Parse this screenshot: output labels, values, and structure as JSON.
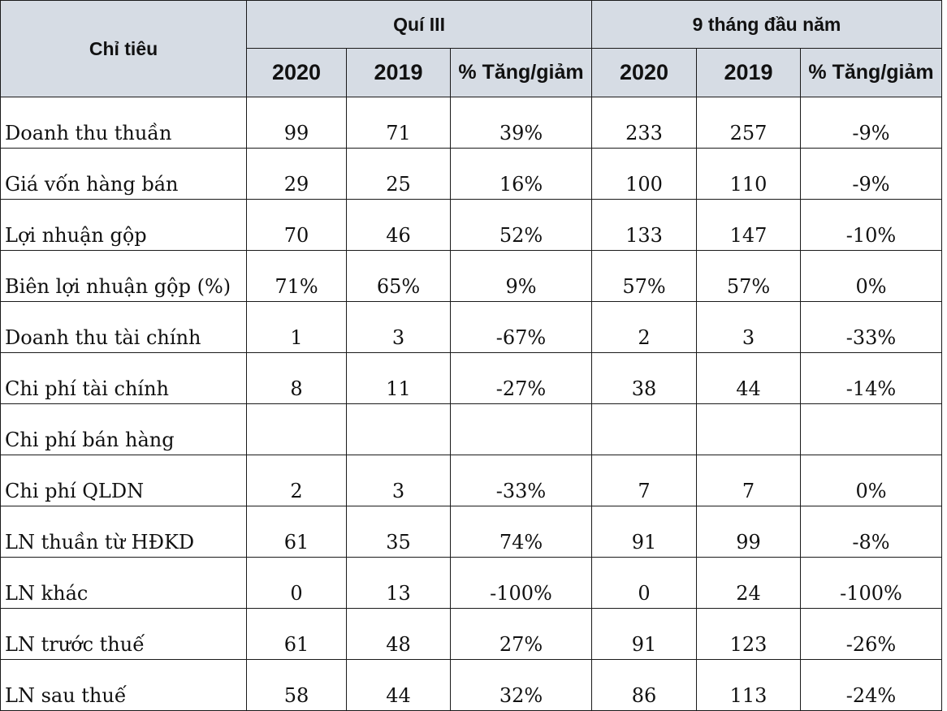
{
  "header": {
    "label": "Chỉ tiêu",
    "group1": "Quí III",
    "group2": "9 tháng đầu năm",
    "sub": [
      "2020",
      "2019",
      "% Tăng/giảm",
      "2020",
      "2019",
      "% Tăng/giảm"
    ]
  },
  "rows": [
    {
      "label": "Doanh thu thuần",
      "cells": [
        "99",
        "71",
        "39%",
        "233",
        "257",
        "-9%"
      ]
    },
    {
      "label": "Giá vốn hàng bán",
      "cells": [
        "29",
        "25",
        "16%",
        "100",
        "110",
        "-9%"
      ]
    },
    {
      "label": "Lợi nhuận gộp",
      "cells": [
        "70",
        "46",
        "52%",
        "133",
        "147",
        "-10%"
      ]
    },
    {
      "label": "Biên lợi nhuận gộp (%)",
      "cells": [
        "71%",
        "65%",
        "9%",
        "57%",
        "57%",
        "0%"
      ]
    },
    {
      "label": "Doanh thu tài chính",
      "cells": [
        "1",
        "3",
        "-67%",
        "2",
        "3",
        "-33%"
      ]
    },
    {
      "label": "Chi phí tài chính",
      "cells": [
        "8",
        "11",
        "-27%",
        "38",
        "44",
        "-14%"
      ]
    },
    {
      "label": "Chi phí bán hàng",
      "cells": [
        "",
        "",
        "",
        "",
        "",
        ""
      ]
    },
    {
      "label": "Chi phí QLDN",
      "cells": [
        "2",
        "3",
        "-33%",
        "7",
        "7",
        "0%"
      ]
    },
    {
      "label": "LN thuần từ HĐKD",
      "cells": [
        "61",
        "35",
        "74%",
        "91",
        "99",
        "-8%"
      ]
    },
    {
      "label": "LN khác",
      "cells": [
        "0",
        "13",
        "-100%",
        "0",
        "24",
        "-100%"
      ]
    },
    {
      "label": "LN trước thuế",
      "cells": [
        "61",
        "48",
        "27%",
        "91",
        "123",
        "-26%"
      ]
    },
    {
      "label": "LN sau thuế",
      "cells": [
        "58",
        "44",
        "32%",
        "86",
        "113",
        "-24%"
      ]
    }
  ]
}
